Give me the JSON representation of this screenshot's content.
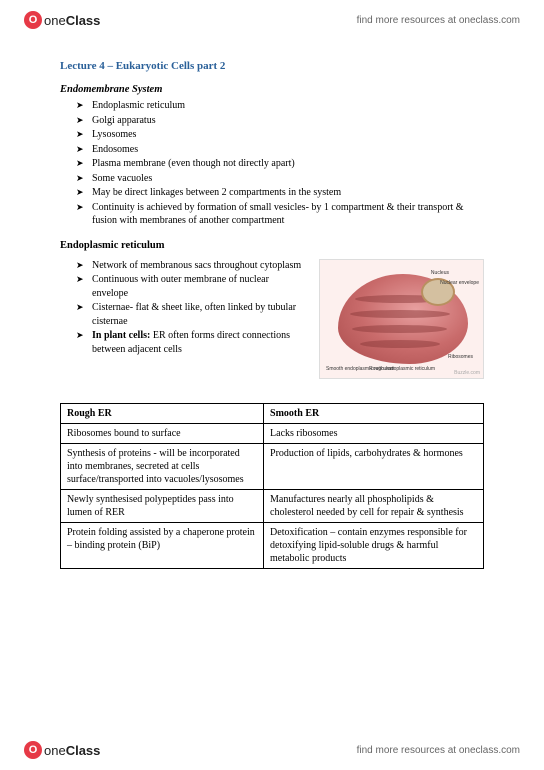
{
  "brand": {
    "iconLetter": "O",
    "one": "one",
    "class": "Class"
  },
  "tagline": "find more resources at oneclass.com",
  "lectureTitle": "Lecture 4 – Eukaryotic Cells part 2",
  "endomembrane": {
    "heading": "Endomembrane System",
    "items": [
      "Endoplasmic reticulum",
      "Golgi apparatus",
      "Lysosomes",
      "Endosomes",
      "Plasma membrane (even though not directly apart)",
      "Some vacuoles",
      "May be direct linkages between 2 compartments in the system",
      "Continuity is achieved by formation of small vesicles- by 1 compartment & their transport & fusion with membranes of another compartment"
    ]
  },
  "er": {
    "heading": "Endoplasmic reticulum",
    "items": [
      "Network of membranous sacs throughout cytoplasm",
      "Continuous with outer membrane of nuclear envelope",
      "Cisternae- flat & sheet like, often linked by tubular cisternae"
    ],
    "plantPrefix": "In plant cells:",
    "plantText": " ER often forms direct connections between adjacent cells",
    "imgLabels": {
      "nucleus": "Nucleus",
      "envelope": "Nuclear envelope",
      "ribosomes": "Ribosomes",
      "rough": "Rough endoplasmic reticulum",
      "smooth": "Smooth endoplasmic reticulum",
      "credit": "Buzzle.com"
    }
  },
  "table": {
    "headers": {
      "left": "Rough ER",
      "right": "Smooth ER"
    },
    "rows": [
      {
        "left": "Ribosomes bound to surface",
        "right": "Lacks ribosomes"
      },
      {
        "left": "Synthesis of proteins - will be incorporated into membranes, secreted at cells surface/transported into vacuoles/lysosomes",
        "right": "Production of lipids, carbohydrates & hormones"
      },
      {
        "left": "Newly synthesised polypeptides pass into lumen of RER",
        "right": "Manufactures nearly all phospholipids & cholesterol needed by cell for repair & synthesis"
      },
      {
        "left": "Protein folding assisted by a chaperone protein – binding protein (BiP)",
        "right": "Detoxification – contain enzymes responsible for detoxifying lipid-soluble drugs & harmful metabolic products"
      }
    ]
  },
  "colors": {
    "titleBlue": "#2a6099",
    "logoRed": "#e63946",
    "erFill": "#c96b6b"
  }
}
